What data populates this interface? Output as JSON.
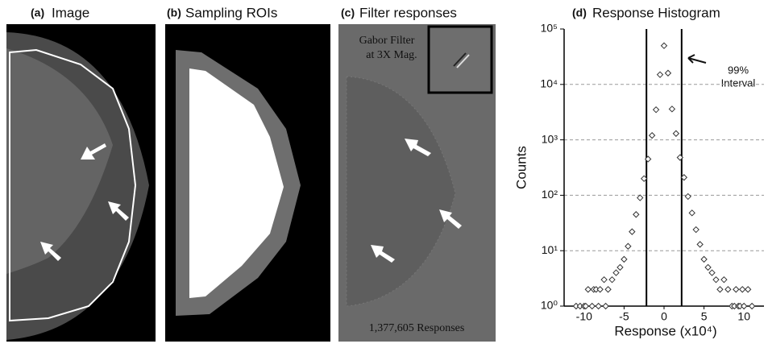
{
  "panels": [
    {
      "label": "(a)",
      "title": "Image"
    },
    {
      "label": "(b)",
      "title": "Sampling ROIs"
    },
    {
      "label": "(c)",
      "title": "Filter responses",
      "inset_text": [
        "Gabor Filter",
        "at 3X Mag."
      ],
      "footer": "1,377,605 Responses"
    }
  ],
  "chart_data": {
    "type": "scatter",
    "label": "(d)",
    "title": "Response Histogram",
    "x_label": "Response (x10⁴)",
    "y_label": "Counts",
    "annotation": [
      "99%",
      "Interval"
    ],
    "log_y": true,
    "grid": true,
    "interval": [
      -2.2,
      2.2
    ],
    "xlim": [
      -12.5,
      12.5
    ],
    "xticks": [
      -10,
      -5,
      0,
      5,
      10
    ],
    "ylim": [
      1,
      100000
    ],
    "yticks": [
      {
        "value": 1,
        "label": "10⁰"
      },
      {
        "value": 10,
        "label": "10¹"
      },
      {
        "value": 100,
        "label": "10²"
      },
      {
        "value": 1000,
        "label": "10³"
      },
      {
        "value": 10000,
        "label": "10⁴"
      },
      {
        "value": 100000,
        "label": "10⁵"
      }
    ],
    "x": [
      -11,
      -10.5,
      -10,
      -9.8,
      -9.5,
      -9,
      -8.8,
      -8.5,
      -8.2,
      -8,
      -7.5,
      -7.3,
      -7,
      -6.5,
      -6,
      -5.5,
      -5,
      -4.5,
      -4,
      -3.5,
      -3,
      -2.5,
      -2,
      -1.5,
      -1,
      -0.5,
      0,
      0.5,
      1,
      1.5,
      2,
      2.5,
      3,
      3.5,
      4,
      4.5,
      5,
      5.5,
      6,
      6.5,
      7,
      7.5,
      8,
      8.5,
      8.8,
      9,
      9.3,
      9.5,
      9.8,
      10,
      10.5,
      11
    ],
    "values": [
      1,
      1,
      1,
      1,
      2,
      1,
      2,
      2,
      1,
      2,
      3,
      1,
      2,
      3,
      4,
      5,
      7,
      12,
      22,
      45,
      90,
      200,
      450,
      1200,
      3500,
      15000,
      50000,
      16000,
      3600,
      1300,
      480,
      210,
      95,
      48,
      24,
      13,
      7,
      5,
      4,
      3,
      2,
      3,
      2,
      1,
      1,
      2,
      1,
      1,
      2,
      1,
      2,
      1
    ]
  }
}
